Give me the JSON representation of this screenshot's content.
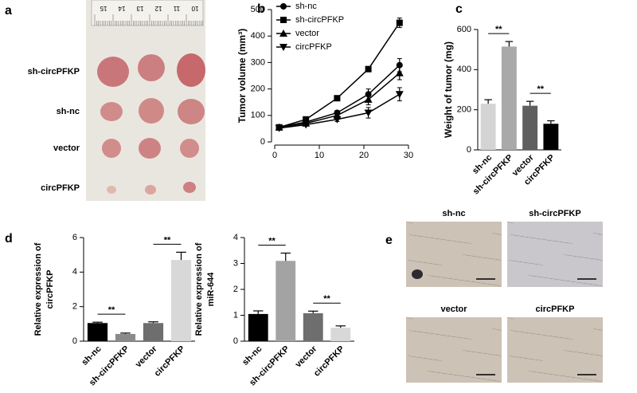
{
  "panel_labels": [
    "a",
    "b",
    "c",
    "d",
    "e"
  ],
  "photo_a": {
    "rows": [
      "sh-circPFKP",
      "sh-nc",
      "vector",
      "circPFKP"
    ],
    "ruler": [
      "15",
      "14",
      "13",
      "12",
      "11",
      "10"
    ]
  },
  "histology_e": {
    "labels": [
      "sh-nc",
      "sh-circPFKP",
      "vector",
      "circPFKP"
    ]
  },
  "chart_data": [
    {
      "type": "line",
      "ylabel": "Tumor volume (mm³)",
      "x": [
        1,
        7,
        14,
        21,
        28
      ],
      "xlim": [
        0,
        30
      ],
      "xticks": [
        0,
        10,
        20,
        30
      ],
      "ylim": [
        0,
        500
      ],
      "yticks": [
        0,
        100,
        200,
        300,
        400,
        500
      ],
      "series": [
        {
          "name": "sh-nc",
          "color": "#000000",
          "marker": "circle",
          "values": [
            55,
            75,
            110,
            180,
            290
          ],
          "errors": [
            5,
            5,
            8,
            20,
            25
          ]
        },
        {
          "name": "sh-circPFKP",
          "color": "#000000",
          "marker": "square",
          "values": [
            55,
            85,
            165,
            275,
            450
          ],
          "errors": [
            5,
            5,
            8,
            8,
            18
          ]
        },
        {
          "name": "vector",
          "color": "#000000",
          "marker": "triangle",
          "values": [
            55,
            70,
            100,
            160,
            260
          ],
          "errors": [
            5,
            5,
            8,
            20,
            25
          ]
        },
        {
          "name": "circPFKP",
          "color": "#000000",
          "marker": "triangle-down",
          "values": [
            52,
            65,
            85,
            110,
            180
          ],
          "errors": [
            5,
            5,
            8,
            20,
            25
          ]
        }
      ]
    },
    {
      "type": "bar",
      "ylabel": "Weight of tumor (mg)",
      "categories": [
        "sh-nc",
        "sh-circPFKP",
        "vector",
        "circPFKP"
      ],
      "values": [
        230,
        515,
        220,
        130
      ],
      "errors": [
        20,
        25,
        22,
        15
      ],
      "colors": [
        "#d4d4d4",
        "#a9a9a9",
        "#5f5f5f",
        "#000000"
      ],
      "ylim": [
        0,
        600
      ],
      "yticks": [
        0,
        200,
        400,
        600
      ],
      "annotations": [
        "**",
        "**"
      ]
    },
    {
      "type": "bar",
      "ylabel": [
        "Relative expression of",
        "circPFKP"
      ],
      "categories": [
        "sh-nc",
        "sh-circPFKP",
        "vector",
        "circPFKP"
      ],
      "values": [
        1.05,
        0.42,
        1.05,
        4.7
      ],
      "errors": [
        0.05,
        0.05,
        0.07,
        0.45
      ],
      "colors": [
        "#000000",
        "#8a8a8a",
        "#6e6e6e",
        "#d8d8d8"
      ],
      "ylim": [
        0,
        6
      ],
      "yticks": [
        0,
        2,
        4,
        6
      ],
      "annotations": [
        "**",
        "**"
      ]
    },
    {
      "type": "bar",
      "ylabel": [
        "Relative expression of",
        "miR-644"
      ],
      "categories": [
        "sh-nc",
        "sh-circPFKP",
        "vector",
        "circPFKP"
      ],
      "values": [
        1.05,
        3.1,
        1.08,
        0.52
      ],
      "errors": [
        0.12,
        0.3,
        0.08,
        0.07
      ],
      "colors": [
        "#000000",
        "#a3a3a3",
        "#6e6e6e",
        "#d8d8d8"
      ],
      "ylim": [
        0,
        4
      ],
      "yticks": [
        0,
        1,
        2,
        3,
        4
      ],
      "annotations": [
        "**",
        "**"
      ]
    }
  ]
}
